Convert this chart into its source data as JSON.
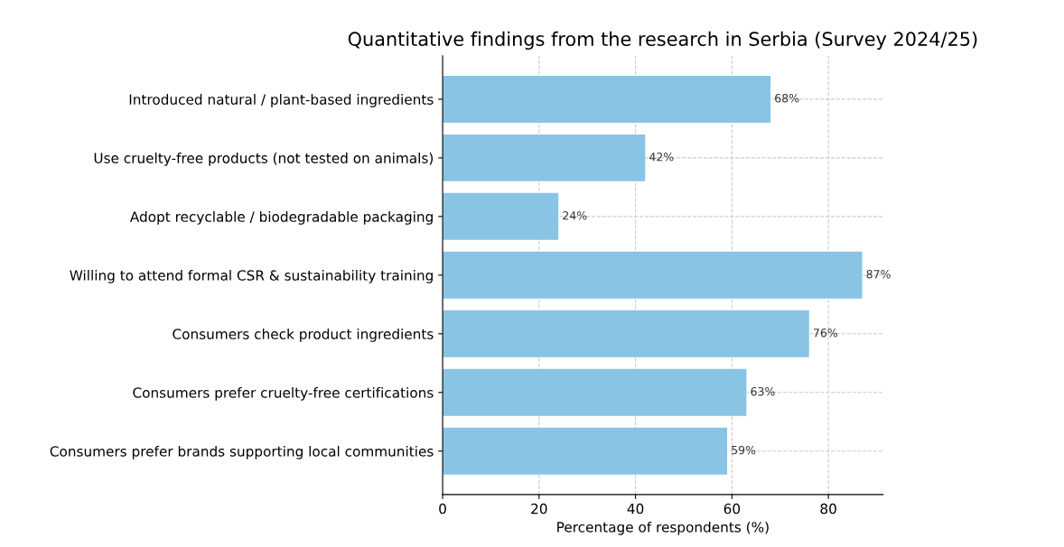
{
  "chart_data": {
    "type": "bar",
    "orientation": "horizontal",
    "title": "Quantitative findings from the research in Serbia (Survey 2024/25)",
    "xlabel": "Percentage of respondents (%)",
    "categories": [
      "Introduced natural / plant-based ingredients",
      "Use cruelty-free products (not tested on animals)",
      "Adopt recyclable / biodegradable packaging",
      "Willing to attend formal CSR & sustainability training",
      "Consumers check product ingredients",
      "Consumers prefer cruelty-free certifications",
      "Consumers prefer brands supporting local communities"
    ],
    "values": [
      68,
      42,
      24,
      87,
      76,
      63,
      59
    ],
    "value_labels": [
      "68%",
      "42%",
      "24%",
      "87%",
      "76%",
      "63%",
      "59%"
    ],
    "color": "#89c4e4",
    "xlim": [
      0,
      91.35
    ],
    "xticks": [
      0,
      20,
      40,
      60,
      80
    ],
    "grid": true
  }
}
